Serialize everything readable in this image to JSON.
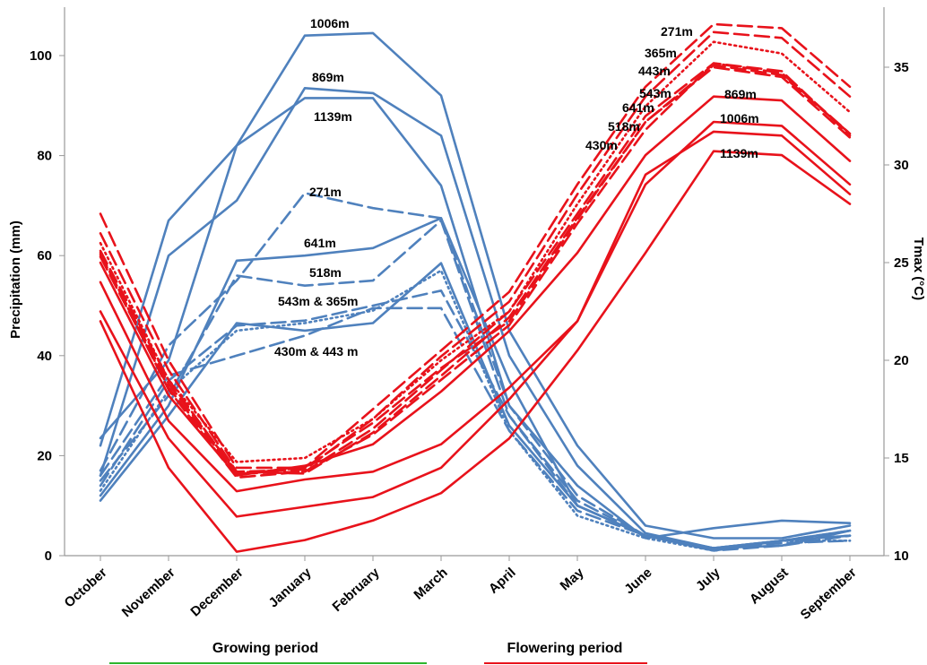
{
  "chart_data": {
    "type": "line",
    "categories": [
      "October",
      "November",
      "December",
      "January",
      "February",
      "March",
      "April",
      "May",
      "June",
      "July",
      "August",
      "September"
    ],
    "ylabel": "Precipitation (mm)",
    "ylabel_right": "Tmax (°C)",
    "ylim": [
      0,
      108
    ],
    "y_ticks": [
      0,
      20,
      40,
      60,
      80,
      100
    ],
    "y2lim": [
      10,
      37.5
    ],
    "y2_ticks": [
      10,
      15,
      20,
      25,
      30,
      35
    ],
    "grid": false,
    "colors": {
      "precipitation": "#4f81bd",
      "tmax": "#e8121b",
      "growing": "#2db52d",
      "flowering": "#e8121b"
    },
    "precipitation_series": [
      {
        "name": "1006m",
        "style": "solid",
        "values": [
          22,
          67,
          82,
          104,
          104.5,
          92,
          45,
          22,
          6,
          3.5,
          3.5,
          6
        ]
      },
      {
        "name": "869m",
        "style": "solid",
        "values": [
          16,
          60,
          71,
          93.5,
          92.5,
          84,
          40,
          18,
          4.5,
          1.5,
          2,
          5
        ]
      },
      {
        "name": "1139m",
        "style": "solid",
        "values": [
          23.5,
          39,
          82,
          91.5,
          91.5,
          74,
          30,
          14,
          3.5,
          5.5,
          7,
          6.5
        ]
      },
      {
        "name": "271m",
        "style": "dashed",
        "values": [
          17,
          42,
          55,
          72.5,
          69.5,
          67.5,
          30,
          12,
          4,
          1,
          3,
          5
        ]
      },
      {
        "name": "641m",
        "style": "solid",
        "values": [
          12,
          30,
          59,
          60,
          61.5,
          67.5,
          35,
          10,
          4,
          1.5,
          3,
          5
        ]
      },
      {
        "name": "518m",
        "style": "dashed",
        "values": [
          15,
          32,
          56,
          54,
          55,
          67,
          28,
          10,
          4,
          1,
          2,
          4
        ]
      },
      {
        "name": "543m",
        "style": "dashed",
        "values": [
          14,
          35,
          46,
          47,
          50,
          53,
          28,
          11,
          4,
          1.5,
          3,
          4
        ]
      },
      {
        "name": "365m",
        "style": "dotted",
        "values": [
          13,
          33,
          45,
          46.5,
          49,
          57,
          25,
          8,
          3.5,
          1,
          3,
          3
        ]
      },
      {
        "name": "430m",
        "style": "solid",
        "values": [
          11,
          28,
          46.5,
          45,
          46.5,
          58.5,
          26,
          10,
          4,
          1.5,
          3,
          4
        ]
      },
      {
        "name": "443m",
        "style": "dashed",
        "values": [
          16,
          36,
          40,
          44,
          49.5,
          49.5,
          25,
          9,
          4,
          1.5,
          2.5,
          3
        ]
      }
    ],
    "tmax_series": [
      {
        "name": "271m",
        "style": "dashed",
        "values": [
          27.5,
          20,
          14.5,
          14.5,
          17.5,
          20.5,
          23.5,
          29,
          34,
          37.2,
          37,
          34
        ]
      },
      {
        "name": "365m",
        "style": "dashed",
        "values": [
          26.5,
          19.5,
          14.3,
          14.4,
          17,
          20.2,
          23,
          28.5,
          33.5,
          36.8,
          36.5,
          33.5
        ]
      },
      {
        "name": "443m",
        "style": "dotted",
        "values": [
          26,
          19,
          14.8,
          15,
          17,
          20,
          22.5,
          28,
          33,
          36.3,
          35.7,
          32.7
        ]
      },
      {
        "name": "543m",
        "style": "dashed",
        "values": [
          25.6,
          19,
          14.2,
          14.3,
          16.5,
          19.5,
          22.5,
          27.5,
          32.5,
          35.2,
          34.8,
          31.5
        ]
      },
      {
        "name": "641m",
        "style": "dashed",
        "values": [
          25.4,
          18.8,
          14.3,
          14.2,
          16.3,
          19.2,
          22.2,
          27.3,
          32.2,
          35.1,
          34.6,
          31.6
        ]
      },
      {
        "name": "518m",
        "style": "dashed",
        "values": [
          25.3,
          18.6,
          14.2,
          14.5,
          16.8,
          19.6,
          22,
          27.2,
          32.2,
          35,
          34.5,
          31.4
        ]
      },
      {
        "name": "430m",
        "style": "dashed",
        "values": [
          25.5,
          18.5,
          14,
          14.3,
          16.2,
          19,
          21.8,
          27,
          31.8,
          35.2,
          34.7,
          31.6
        ]
      },
      {
        "name": "869m",
        "style": "solid",
        "values": [
          25,
          18.2,
          14.1,
          14.6,
          15.7,
          18.4,
          21.5,
          25.5,
          30.5,
          33.5,
          33.3,
          30.2
        ]
      },
      {
        "name": "1006m",
        "style": "solid",
        "values": [
          24,
          16.9,
          13.3,
          13.9,
          14.3,
          15.7,
          18.6,
          22,
          29,
          32.2,
          32,
          29
        ]
      },
      {
        "name": "1139m",
        "style": "solid",
        "values": [
          22.5,
          16,
          12,
          12.5,
          13,
          14.5,
          18,
          22,
          29.5,
          31.7,
          31.5,
          28.5
        ]
      },
      {
        "name": "",
        "style": "solid",
        "values": [
          22,
          14.5,
          10.2,
          10.8,
          11.8,
          13.2,
          16,
          20.5,
          25.5,
          30.7,
          30.5,
          28
        ]
      }
    ],
    "annotations_precipitation": [
      "1006m",
      "869m",
      "1139m",
      "271m",
      "641m",
      "518m",
      "543m & 365m",
      "430m & 443 m"
    ],
    "annotations_tmax": [
      "271m",
      "365m",
      "443m",
      "543m",
      "641m",
      "518m",
      "430m",
      "869m",
      "1006m",
      "1139m"
    ],
    "periods": [
      {
        "label": "Growing period",
        "color": "#2db52d"
      },
      {
        "label": "Flowering period",
        "color": "#e8121b"
      }
    ]
  }
}
